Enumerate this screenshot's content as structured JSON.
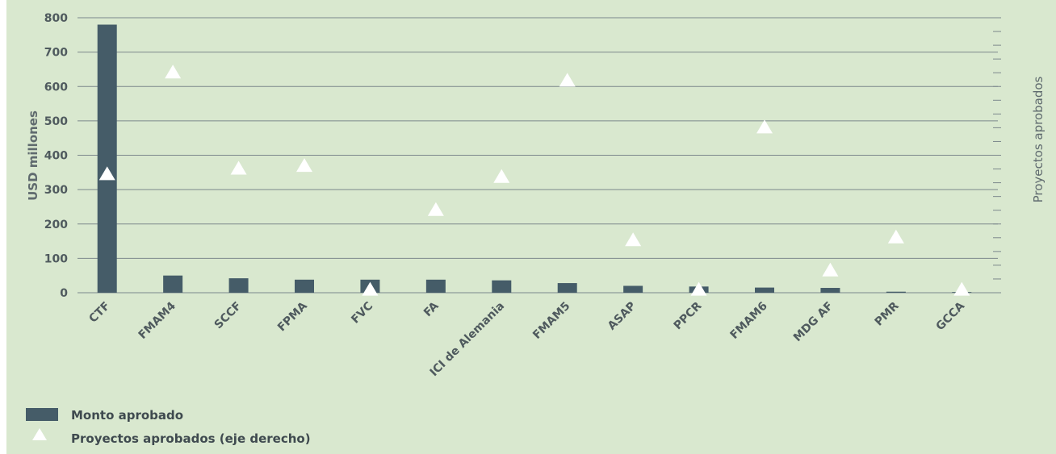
{
  "chart_data": {
    "type": "bar",
    "categories": [
      "CTF",
      "FMAM4",
      "SCCF",
      "FPMA",
      "FVC",
      "FA",
      "ICI de Alemania",
      "FMAM5",
      "ASAP",
      "PPCR",
      "FMAM6",
      "MDG AF",
      "PMR",
      "GCCA"
    ],
    "series": [
      {
        "name": "Monto aprobado",
        "type": "bar",
        "axis": "left",
        "color": "#455c68",
        "values": [
          780,
          50,
          42,
          38,
          38,
          38,
          36,
          28,
          20,
          18,
          15,
          14,
          3,
          2
        ]
      },
      {
        "name": "Proyectos aprobados (eje derecho)",
        "type": "scatter",
        "marker": "triangle",
        "axis": "right",
        "color": "#ffffff",
        "values": [
          43,
          80,
          45,
          46,
          1,
          30,
          42,
          77,
          19,
          1,
          60,
          8,
          20,
          1
        ]
      }
    ],
    "ylabel": "USD millones",
    "y2label": "Proyectos aprobados",
    "ylim": [
      0,
      800
    ],
    "y2lim": [
      0,
      100
    ],
    "yticks": [
      "0",
      "100",
      "200",
      "300",
      "400",
      "500",
      "600",
      "700",
      "800"
    ],
    "grid": true,
    "legend_position": "bottom-left"
  },
  "legend": {
    "bar_label": "Monto aprobado",
    "triangle_label": "Proyectos aprobados (eje derecho)"
  }
}
